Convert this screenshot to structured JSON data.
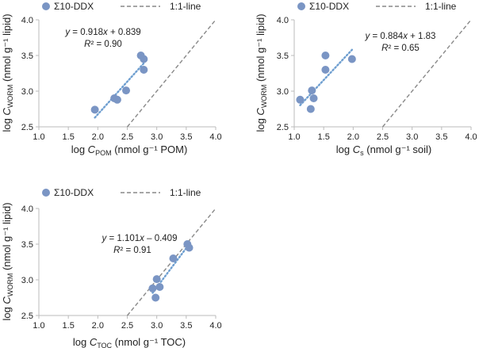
{
  "colors": {
    "point": "#7a95c4",
    "trend": "#6f9fd0",
    "identity": "#888888",
    "axis": "#bbbbbb"
  },
  "legend": {
    "series_label": "Σ10-DDX",
    "identity_label": "1:1-line"
  },
  "chart_data": [
    {
      "type": "scatter",
      "xlabel_prefix": "log ",
      "xlabel_var": "C",
      "xlabel_sub": "POM",
      "xlabel_unit": " (nmol g⁻¹ POM)",
      "ylabel_prefix": "log ",
      "ylabel_var": "C",
      "ylabel_sub": "WORM",
      "ylabel_unit": " (nmol g⁻¹ lipid)",
      "xlim": [
        1.0,
        4.0
      ],
      "ylim": [
        2.5,
        4.0
      ],
      "xticks": [
        "1.0",
        "1.5",
        "2.0",
        "2.5",
        "3.0",
        "3.5",
        "4.0"
      ],
      "yticks": [
        "2.5",
        "3.0",
        "3.5",
        "4.0"
      ],
      "eq_prefix": "y",
      "eq_body": " = 0.918",
      "eq_x": "x",
      "eq_tail": " + 0.839",
      "r2_label": "R",
      "r2_tail": "² = 0.90",
      "slope": 0.918,
      "intercept": 0.839,
      "trend_x": [
        1.95,
        2.8
      ],
      "points": [
        [
          1.95,
          2.74
        ],
        [
          2.28,
          2.9
        ],
        [
          2.33,
          2.88
        ],
        [
          2.48,
          3.01
        ],
        [
          2.73,
          3.5
        ],
        [
          2.78,
          3.45
        ],
        [
          2.78,
          3.3
        ]
      ]
    },
    {
      "type": "scatter",
      "xlabel_prefix": "log ",
      "xlabel_var": "C",
      "xlabel_sub": "s",
      "xlabel_unit": " (nmol g⁻¹ soil)",
      "ylabel_prefix": "log ",
      "ylabel_var": "C",
      "ylabel_sub": "WORM",
      "ylabel_unit": " (nmol g⁻¹ lipid)",
      "xlim": [
        1.0,
        4.0
      ],
      "ylim": [
        2.5,
        4.0
      ],
      "xticks": [
        "1.0",
        "1.5",
        "2.0",
        "2.5",
        "3.0",
        "3.5",
        "4.0"
      ],
      "yticks": [
        "2.5",
        "3.0",
        "3.5",
        "4.0"
      ],
      "eq_prefix": "y",
      "eq_body": " = 0.884",
      "eq_x": "x",
      "eq_tail": " + 1.83",
      "r2_label": "R",
      "r2_tail": "² = 0.65",
      "slope": 0.884,
      "intercept": 1.83,
      "trend_x": [
        1.1,
        1.98
      ],
      "points": [
        [
          1.1,
          2.88
        ],
        [
          1.28,
          2.75
        ],
        [
          1.3,
          3.01
        ],
        [
          1.33,
          2.9
        ],
        [
          1.53,
          3.5
        ],
        [
          1.53,
          3.3
        ],
        [
          1.98,
          3.45
        ]
      ]
    },
    {
      "type": "scatter",
      "xlabel_prefix": "log ",
      "xlabel_var": "C",
      "xlabel_sub": "TOC",
      "xlabel_unit": " (nmol g⁻¹ TOC)",
      "ylabel_prefix": "log ",
      "ylabel_var": "C",
      "ylabel_sub": "WORM",
      "ylabel_unit": " (nmol g⁻¹ lipid)",
      "xlim": [
        1.0,
        4.0
      ],
      "ylim": [
        2.5,
        4.0
      ],
      "xticks": [
        "1.0",
        "1.5",
        "2.0",
        "2.5",
        "3.0",
        "3.5",
        "4.0"
      ],
      "yticks": [
        "2.5",
        "3.0",
        "3.5",
        "4.0"
      ],
      "eq_prefix": "y",
      "eq_body": " = 1.101",
      "eq_x": "x",
      "eq_tail": " – 0.409",
      "r2_label": "R",
      "r2_tail": "² = 0.91",
      "slope": 1.101,
      "intercept": -0.409,
      "trend_x": [
        2.93,
        3.55
      ],
      "points": [
        [
          2.93,
          2.88
        ],
        [
          2.98,
          2.75
        ],
        [
          3.0,
          3.01
        ],
        [
          3.05,
          2.9
        ],
        [
          3.28,
          3.3
        ],
        [
          3.52,
          3.5
        ],
        [
          3.55,
          3.45
        ]
      ]
    }
  ]
}
